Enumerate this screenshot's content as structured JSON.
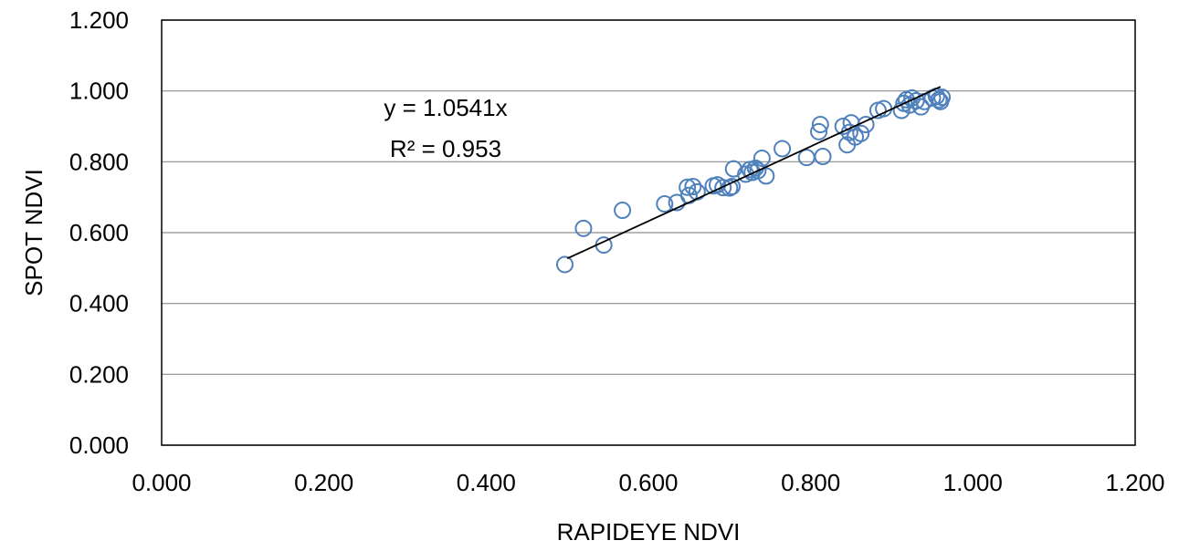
{
  "chart_data": {
    "type": "scatter",
    "xlabel": "RAPIDEYE NDVI",
    "ylabel": "SPOT NDVI",
    "xlim": [
      0,
      1.2
    ],
    "ylim": [
      0,
      1.2
    ],
    "x_ticks": [
      "0.000",
      "0.200",
      "0.400",
      "0.600",
      "0.800",
      "1.000",
      "1.200"
    ],
    "y_ticks": [
      "0.000",
      "0.200",
      "0.400",
      "0.600",
      "0.800",
      "1.000",
      "1.200"
    ],
    "grid": "horizontal",
    "marker": "open-circle",
    "marker_color": "#4f81bd",
    "trendline_color": "#000000",
    "trendline": {
      "slope": 1.0541,
      "x_range": [
        0.5,
        0.96
      ]
    },
    "equation_label": "y = 1.0541x",
    "r2_label": "R² = 0.953",
    "points": [
      [
        0.497,
        0.51
      ],
      [
        0.52,
        0.612
      ],
      [
        0.545,
        0.565
      ],
      [
        0.568,
        0.663
      ],
      [
        0.62,
        0.681
      ],
      [
        0.635,
        0.685
      ],
      [
        0.648,
        0.728
      ],
      [
        0.65,
        0.705
      ],
      [
        0.655,
        0.73
      ],
      [
        0.66,
        0.715
      ],
      [
        0.68,
        0.732
      ],
      [
        0.685,
        0.735
      ],
      [
        0.692,
        0.727
      ],
      [
        0.7,
        0.726
      ],
      [
        0.703,
        0.73
      ],
      [
        0.705,
        0.78
      ],
      [
        0.72,
        0.765
      ],
      [
        0.725,
        0.778
      ],
      [
        0.728,
        0.77
      ],
      [
        0.732,
        0.782
      ],
      [
        0.735,
        0.775
      ],
      [
        0.74,
        0.81
      ],
      [
        0.745,
        0.76
      ],
      [
        0.765,
        0.837
      ],
      [
        0.795,
        0.812
      ],
      [
        0.81,
        0.885
      ],
      [
        0.812,
        0.905
      ],
      [
        0.815,
        0.815
      ],
      [
        0.84,
        0.9
      ],
      [
        0.845,
        0.848
      ],
      [
        0.848,
        0.883
      ],
      [
        0.85,
        0.91
      ],
      [
        0.855,
        0.87
      ],
      [
        0.862,
        0.88
      ],
      [
        0.868,
        0.905
      ],
      [
        0.883,
        0.945
      ],
      [
        0.89,
        0.95
      ],
      [
        0.912,
        0.945
      ],
      [
        0.915,
        0.965
      ],
      [
        0.918,
        0.975
      ],
      [
        0.922,
        0.96
      ],
      [
        0.925,
        0.98
      ],
      [
        0.93,
        0.972
      ],
      [
        0.936,
        0.955
      ],
      [
        0.94,
        0.97
      ],
      [
        0.95,
        0.98
      ],
      [
        0.955,
        0.985
      ],
      [
        0.958,
        0.975
      ],
      [
        0.96,
        0.97
      ],
      [
        0.962,
        0.982
      ]
    ]
  }
}
